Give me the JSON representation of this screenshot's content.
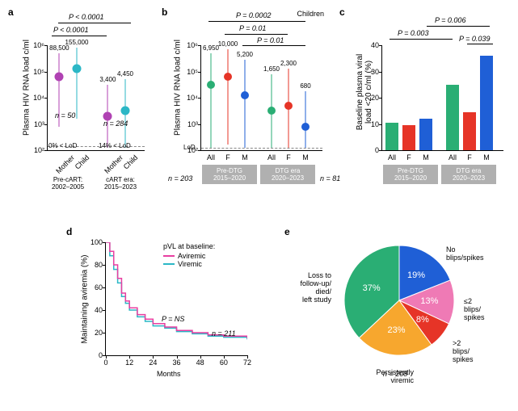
{
  "colors": {
    "green": "#2aae74",
    "red": "#e63427",
    "blue": "#1f5fd6",
    "magenta": "#e83fa1",
    "cyan": "#2bb7c6",
    "orange": "#f7a72e",
    "pink": "#ef7ab5",
    "purple": "#b042b3",
    "black": "#000",
    "gray": "#b0b0b0",
    "bg": "#ffffff"
  },
  "a": {
    "letter": "a",
    "ylabel": "Plasma HIV RNA load c/ml",
    "yticks": [
      "10²",
      "10³",
      "10⁴",
      "10⁵",
      "10⁶"
    ],
    "points": [
      {
        "x": 0.12,
        "y": 0.7,
        "lo": 0.22,
        "hi": 0.92,
        "col": "#b042b3",
        "lab": "88,500"
      },
      {
        "x": 0.3,
        "y": 0.78,
        "lo": 0.3,
        "hi": 0.98,
        "col": "#2bb7c6",
        "lab": "155,000"
      },
      {
        "x": 0.62,
        "y": 0.32,
        "lo": 0.02,
        "hi": 0.62,
        "col": "#b042b3",
        "lab": "3,400"
      },
      {
        "x": 0.8,
        "y": 0.38,
        "lo": 0.02,
        "hi": 0.68,
        "col": "#2bb7c6",
        "lab": "4,450"
      }
    ],
    "xlabs": [
      "Mother",
      "Child",
      "Mother",
      "Child"
    ],
    "era1": "Pre-cART:\n2002–2005",
    "era2": "cART era:\n2015–2023",
    "n1": "n = 50",
    "n2": "n = 284",
    "a1": "0% < LoD",
    "a2": "14% < LoD",
    "p1": "P < 0.0001",
    "p2": "P < 0.0001",
    "lod": 0.04
  },
  "b": {
    "letter": "b",
    "title": "Children",
    "ylabel": "Plasma HIV RNA load c/ml",
    "yticks": [
      "10²",
      "10³",
      "10⁴",
      "10⁵",
      "10⁶"
    ],
    "points": [
      {
        "x": 0.08,
        "y": 0.62,
        "lo": 0.02,
        "hi": 0.92,
        "col": "#2aae74",
        "lab": "6,950"
      },
      {
        "x": 0.22,
        "y": 0.7,
        "lo": 0.05,
        "hi": 0.96,
        "col": "#e63427",
        "lab": "10,000"
      },
      {
        "x": 0.36,
        "y": 0.52,
        "lo": 0.02,
        "hi": 0.86,
        "col": "#1f5fd6",
        "lab": "5,200"
      },
      {
        "x": 0.58,
        "y": 0.38,
        "lo": 0.02,
        "hi": 0.72,
        "col": "#2aae74",
        "lab": "1,650"
      },
      {
        "x": 0.72,
        "y": 0.42,
        "lo": 0.02,
        "hi": 0.78,
        "col": "#e63427",
        "lab": "2,300"
      },
      {
        "x": 0.86,
        "y": 0.22,
        "lo": 0.02,
        "hi": 0.56,
        "col": "#1f5fd6",
        "lab": "680"
      }
    ],
    "xlabs": [
      "All",
      "F",
      "M",
      "All",
      "F",
      "M"
    ],
    "era1": "Pre-DTG\n2015–2020",
    "era2": "DTG era\n2020–2023",
    "n1": "n = 203",
    "n2": "n = 81",
    "p1": "P = 0.0002",
    "p2": "P = 0.01",
    "p3": "P = 0.01",
    "lod": 0.02,
    "lodlab": "LoD"
  },
  "c": {
    "letter": "c",
    "ylabel": "Baseline plasma viral\nload <20 c/ml (%)",
    "ymax": 40,
    "ystep": 10,
    "bars": [
      {
        "x": 0.08,
        "h": 10.5,
        "col": "#2aae74"
      },
      {
        "x": 0.22,
        "h": 9.5,
        "col": "#e63427"
      },
      {
        "x": 0.36,
        "h": 12,
        "col": "#1f5fd6"
      },
      {
        "x": 0.58,
        "h": 25,
        "col": "#2aae74"
      },
      {
        "x": 0.72,
        "h": 14.5,
        "col": "#e63427"
      },
      {
        "x": 0.86,
        "h": 36,
        "col": "#1f5fd6"
      }
    ],
    "xlabs": [
      "All",
      "F",
      "M",
      "All",
      "F",
      "M"
    ],
    "era1": "Pre-DTG\n2015–2020",
    "era2": "DTG era\n2020–2023",
    "p1": "P = 0.003",
    "p2": "P = 0.006",
    "p3": "P = 0.039"
  },
  "d": {
    "letter": "d",
    "xlabel": "Months",
    "ylabel": "Maintaining aviremia (%)",
    "xticks": [
      0,
      12,
      24,
      36,
      48,
      60,
      72
    ],
    "yticks": [
      0,
      20,
      40,
      60,
      80,
      100
    ],
    "legtitle": "pVL at baseline:",
    "leg1": "Aviremic",
    "leg2": "Viremic",
    "p": "P = NS",
    "n": "n = 211",
    "s1": [
      [
        0,
        100
      ],
      [
        2,
        92
      ],
      [
        4,
        80
      ],
      [
        6,
        68
      ],
      [
        8,
        55
      ],
      [
        10,
        48
      ],
      [
        12,
        42
      ],
      [
        16,
        36
      ],
      [
        20,
        32
      ],
      [
        24,
        28
      ],
      [
        30,
        25
      ],
      [
        36,
        22
      ],
      [
        44,
        20
      ],
      [
        52,
        18
      ],
      [
        60,
        17
      ],
      [
        72,
        15
      ]
    ],
    "s2": [
      [
        0,
        100
      ],
      [
        2,
        88
      ],
      [
        4,
        76
      ],
      [
        6,
        64
      ],
      [
        8,
        52
      ],
      [
        10,
        46
      ],
      [
        12,
        40
      ],
      [
        16,
        34
      ],
      [
        20,
        30
      ],
      [
        24,
        26
      ],
      [
        30,
        24
      ],
      [
        36,
        21
      ],
      [
        44,
        19
      ],
      [
        52,
        17
      ],
      [
        60,
        16
      ],
      [
        72,
        14
      ]
    ],
    "c1": "#e83fa1",
    "c2": "#2bb7c6"
  },
  "e": {
    "letter": "e",
    "n": "n = 208",
    "slices": [
      {
        "pct": 37,
        "col": "#2aae74",
        "lab": "Loss to\nfollow-up/\ndied/\nleft study"
      },
      {
        "pct": 19,
        "col": "#1f5fd6",
        "lab": "No\nblips/spikes"
      },
      {
        "pct": 13,
        "col": "#ef7ab5",
        "lab": "≤2\nblips/\nspikes"
      },
      {
        "pct": 8,
        "col": "#e63427",
        "lab": ">2\nblips/\nspikes"
      },
      {
        "pct": 23,
        "col": "#f7a72e",
        "lab": "Persistently\nviremic"
      }
    ]
  }
}
